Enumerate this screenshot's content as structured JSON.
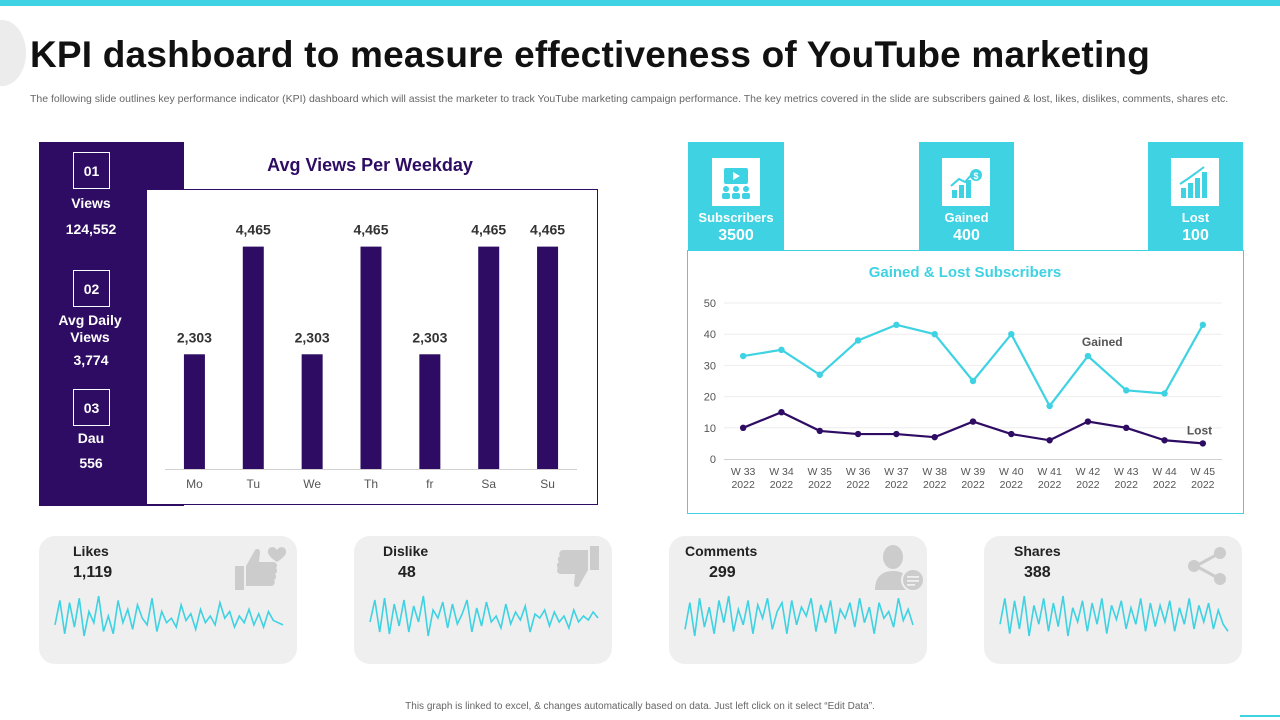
{
  "header": {
    "title": "KPI dashboard to measure effectiveness of YouTube marketing",
    "subtitle": "The following slide outlines key performance indicator (KPI) dashboard which will assist the marketer to track YouTube marketing campaign performance. The key metrics covered in the slide are subscribers gained & lost, likes, dislikes, comments, shares etc."
  },
  "left_kpis": [
    {
      "number": "01",
      "label": "Views",
      "value": "124,552"
    },
    {
      "number": "02",
      "label": "Avg Daily Views",
      "value": "3,774"
    },
    {
      "number": "03",
      "label": "Dau",
      "value": "556"
    }
  ],
  "subscribers": [
    {
      "label": "Subscribers",
      "value": "3500",
      "icon": "audience-icon"
    },
    {
      "label": "Gained",
      "value": "400",
      "icon": "growth-chart-icon"
    },
    {
      "label": "Lost",
      "value": "100",
      "icon": "bar-chart-icon"
    }
  ],
  "metrics": [
    {
      "label": "Likes",
      "value": "1,119",
      "icon": "thumbs-up-heart-icon"
    },
    {
      "label": "Dislike",
      "value": "48",
      "icon": "thumbs-down-icon"
    },
    {
      "label": "Comments",
      "value": "299",
      "icon": "person-comment-icon"
    },
    {
      "label": "Shares",
      "value": "388",
      "icon": "share-icon"
    }
  ],
  "footnote": "This graph is linked to excel, & changes automatically based on data. Just left click on it select “Edit Data”.",
  "colors": {
    "purple": "#2e0c63",
    "cyan": "#3ed2e2",
    "grey_card": "#efefef",
    "icon_grey": "#cccccc"
  },
  "chart_data": [
    {
      "type": "bar",
      "title": "Avg Views Per Weekday",
      "categories": [
        "Mo",
        "Tu",
        "We",
        "Th",
        "fr",
        "Sa",
        "Su"
      ],
      "values": [
        2303,
        4465,
        2303,
        4465,
        2303,
        4465,
        4465
      ],
      "value_labels": [
        "2,303",
        "4,465",
        "2,303",
        "4,465",
        "2,303",
        "4,465",
        "4,465"
      ],
      "xlabel": "",
      "ylabel": "",
      "ylim": [
        0,
        5200
      ]
    },
    {
      "type": "line",
      "title": "Gained & Lost Subscribers",
      "x": [
        "W 33 2022",
        "W 34 2022",
        "W 35 2022",
        "W 36 2022",
        "W 37 2022",
        "W 38 2022",
        "W 39 2022",
        "W 40 2022",
        "W 41 2022",
        "W 42 2022",
        "W 43 2022",
        "W 44 2022",
        "W 45 2022"
      ],
      "x_labels": [
        [
          "W 33",
          "2022"
        ],
        [
          "W 34",
          "2022"
        ],
        [
          "W 35",
          "2022"
        ],
        [
          "W 36",
          "2022"
        ],
        [
          "W 37",
          "2022"
        ],
        [
          "W 38",
          "2022"
        ],
        [
          "W 39",
          "2022"
        ],
        [
          "W 40",
          "2022"
        ],
        [
          "W 41",
          "2022"
        ],
        [
          "W 42",
          "2022"
        ],
        [
          "W 43",
          "2022"
        ],
        [
          "W 44",
          "2022"
        ],
        [
          "W 45",
          "2022"
        ]
      ],
      "series": [
        {
          "name": "Gained",
          "values": [
            33,
            35,
            27,
            38,
            43,
            40,
            25,
            40,
            17,
            33,
            22,
            21,
            43
          ]
        },
        {
          "name": "Lost",
          "values": [
            10,
            15,
            9,
            8,
            8,
            7,
            12,
            8,
            6,
            12,
            10,
            6,
            5
          ]
        }
      ],
      "yticks": [
        0,
        10,
        20,
        30,
        40,
        50
      ],
      "ylim": [
        0,
        50
      ],
      "grid": true
    },
    {
      "type": "line",
      "title": "Likes trend (sparkline)",
      "values": [
        38,
        60,
        30,
        58,
        36,
        62,
        28,
        50,
        40,
        64,
        32,
        46,
        30,
        60,
        40,
        52,
        34,
        56,
        44,
        38,
        62,
        32,
        50,
        40,
        44,
        36,
        56,
        42,
        48,
        34,
        52,
        40,
        46,
        38,
        58,
        44,
        50,
        36,
        46,
        40,
        52,
        38,
        48,
        36,
        50,
        42,
        40,
        38
      ]
    },
    {
      "type": "line",
      "title": "Dislike trend (sparkline)",
      "values": [
        40,
        62,
        30,
        64,
        28,
        58,
        36,
        62,
        30,
        56,
        40,
        66,
        26,
        52,
        44,
        60,
        34,
        58,
        38,
        48,
        62,
        30,
        54,
        36,
        60,
        40,
        46,
        34,
        58,
        38,
        50,
        42,
        56,
        30,
        48,
        44,
        52,
        36,
        50,
        40,
        46,
        34,
        52,
        40,
        46,
        42,
        50,
        44
      ]
    },
    {
      "type": "line",
      "title": "Comments trend (sparkline)",
      "values": [
        34,
        58,
        28,
        62,
        36,
        54,
        30,
        60,
        40,
        64,
        32,
        52,
        38,
        60,
        30,
        56,
        44,
        62,
        34,
        50,
        58,
        30,
        60,
        38,
        54,
        46,
        62,
        32,
        56,
        40,
        60,
        30,
        52,
        44,
        58,
        36,
        62,
        40,
        54,
        30,
        58,
        44,
        50,
        36,
        62,
        42,
        52,
        38
      ]
    },
    {
      "type": "line",
      "title": "Shares trend (sparkline)",
      "values": [
        40,
        62,
        32,
        60,
        36,
        64,
        30,
        56,
        40,
        62,
        34,
        58,
        38,
        64,
        30,
        54,
        42,
        60,
        34,
        58,
        40,
        62,
        32,
        56,
        44,
        60,
        36,
        54,
        40,
        62,
        34,
        58,
        38,
        56,
        42,
        60,
        34,
        54,
        40,
        62,
        36,
        56,
        42,
        58,
        36,
        52,
        40,
        34
      ]
    }
  ]
}
